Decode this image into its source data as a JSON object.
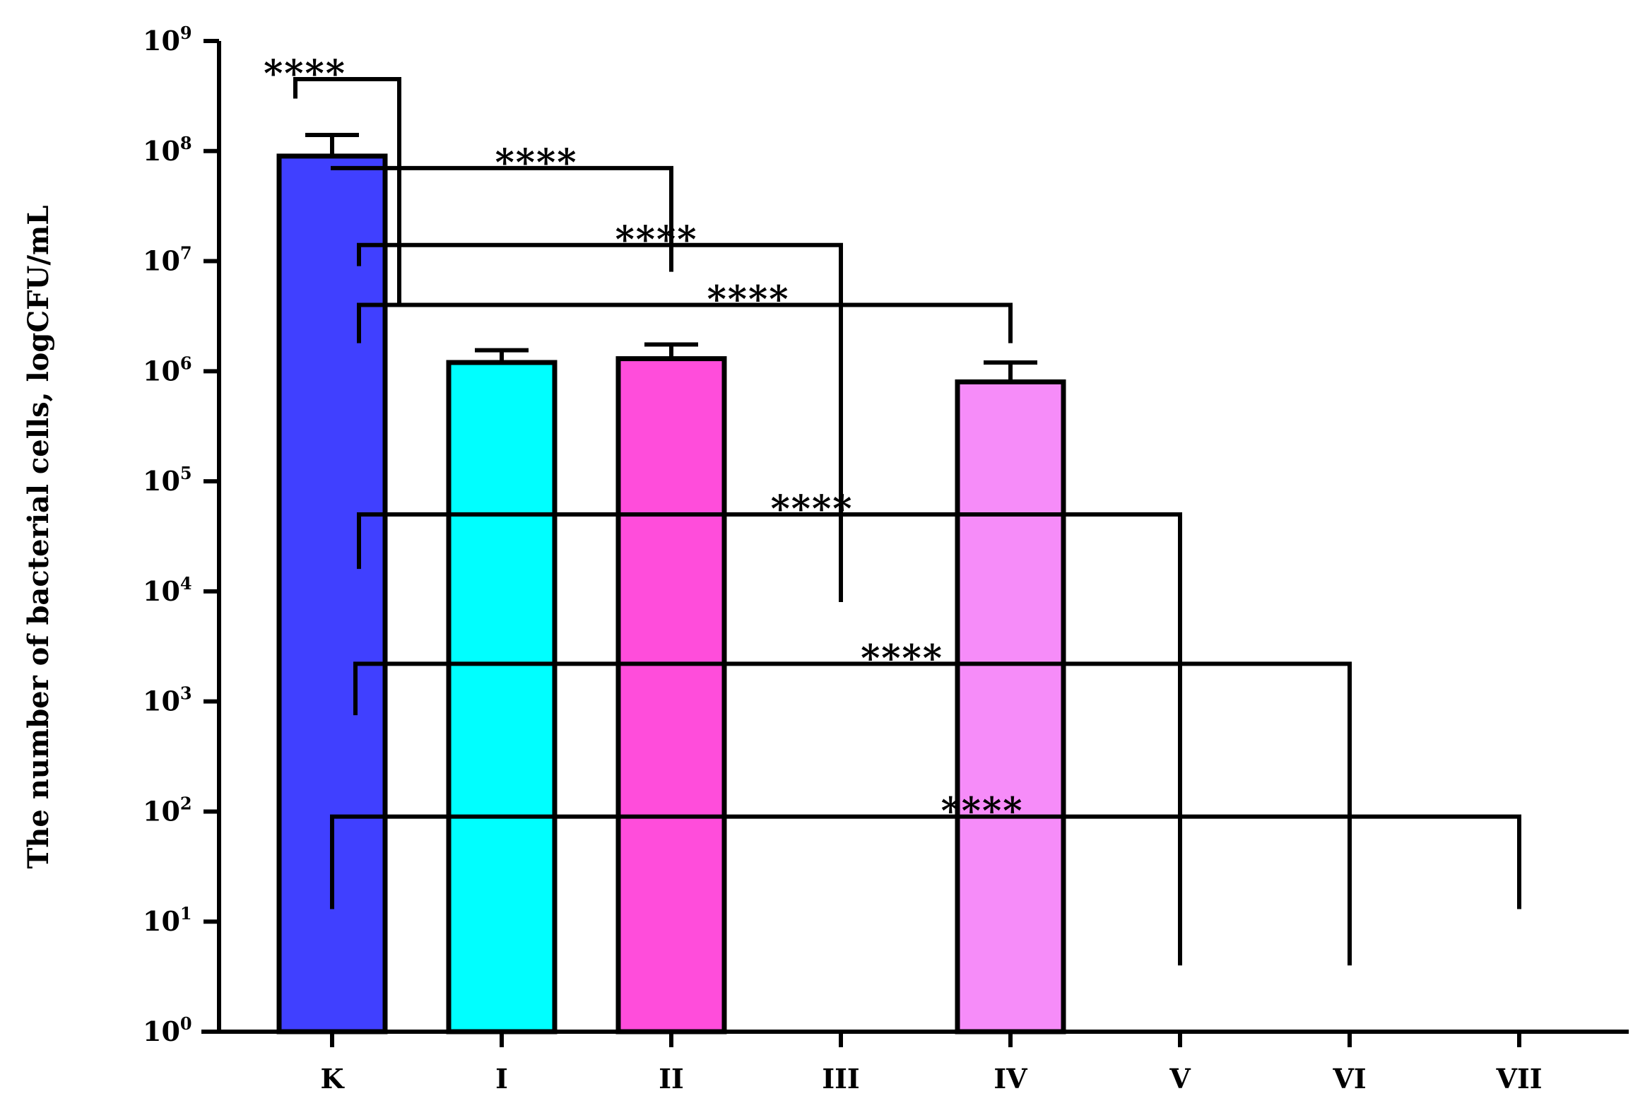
{
  "chart_data": {
    "type": "bar",
    "scale": "log",
    "ylabel": "The number of bacterial cells, logCFU/mL",
    "xlabel": "",
    "title": "",
    "ylim": [
      1,
      1000000000
    ],
    "yticks": [
      {
        "base": "10",
        "exp": "0",
        "value": 1
      },
      {
        "base": "10",
        "exp": "1",
        "value": 10
      },
      {
        "base": "10",
        "exp": "2",
        "value": 100
      },
      {
        "base": "10",
        "exp": "3",
        "value": 1000
      },
      {
        "base": "10",
        "exp": "4",
        "value": 10000
      },
      {
        "base": "10",
        "exp": "5",
        "value": 100000
      },
      {
        "base": "10",
        "exp": "6",
        "value": 1000000
      },
      {
        "base": "10",
        "exp": "7",
        "value": 10000000
      },
      {
        "base": "10",
        "exp": "8",
        "value": 100000000
      },
      {
        "base": "10",
        "exp": "9",
        "value": 1000000000
      }
    ],
    "categories": [
      "K",
      "I",
      "II",
      "III",
      "IV",
      "V",
      "VI",
      "VII"
    ],
    "values": [
      90000000,
      1200000,
      1300000,
      0,
      800000,
      0,
      0,
      0
    ],
    "error_upper": [
      140000000,
      1550000,
      1750000,
      null,
      1200000,
      null,
      null,
      null
    ],
    "colors": [
      "#4040ff",
      "#00ffff",
      "#ff4ddb",
      "#ffffff",
      "#f68cf9",
      "#ffffff",
      "#ffffff",
      "#ffffff"
    ],
    "comparisons": [
      {
        "from": "K",
        "to": "I",
        "label": "****",
        "level": 450000000,
        "from_end": 300000000,
        "to_end": 4000000
      },
      {
        "from": "K",
        "to": "II",
        "label": "****",
        "level": 70000000,
        "from_end": 70000000,
        "to_end": 8000000
      },
      {
        "from": "K",
        "to": "III",
        "label": "****",
        "level": 14000000,
        "from_end": 9000000,
        "to_end": 8000
      },
      {
        "from": "K",
        "to": "IV",
        "label": "****",
        "level": 4000000,
        "from_end": 1800000,
        "to_end": 1800000
      },
      {
        "from": "K",
        "to": "V",
        "label": "****",
        "level": 50000,
        "from_end": 16000,
        "to_end": 4
      },
      {
        "from": "K",
        "to": "VI",
        "label": "****",
        "level": 2200,
        "from_end": 750,
        "to_end": 4
      },
      {
        "from": "K",
        "to": "VII",
        "label": "****",
        "level": 90,
        "from_end": 13,
        "to_end": 13
      }
    ]
  }
}
